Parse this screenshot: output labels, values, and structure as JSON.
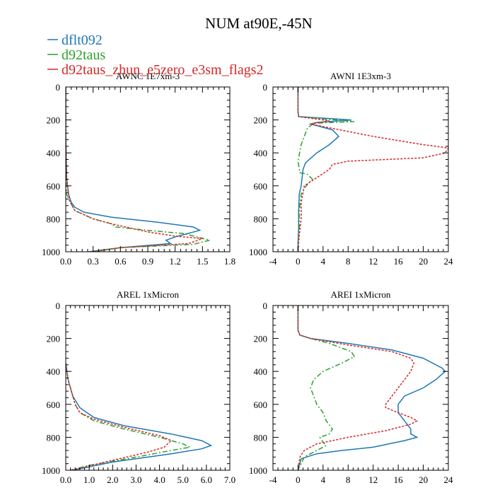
{
  "title": "NUM at90E,-45N",
  "legend": [
    {
      "label": "dflt092",
      "color": "#1f77b4",
      "dash": "solid"
    },
    {
      "label": "d92taus",
      "color": "#2ca02c",
      "dash": "dashdot"
    },
    {
      "label": "d92taus_zhun_e5zero_e3sm_flags2",
      "color": "#d62728",
      "dash": "dotted"
    }
  ],
  "chart_data": [
    {
      "type": "line",
      "title": "AWNC  1E7xm-3",
      "xlim": [
        0,
        1.8
      ],
      "ylim": [
        0,
        1000
      ],
      "xticks": [
        "0.0",
        "0.3",
        "0.6",
        "0.9",
        "1.2",
        "1.5",
        "1.8"
      ],
      "yticks": [
        "0",
        "200",
        "400",
        "600",
        "800",
        "1000"
      ],
      "xtick_values": [
        0,
        0.3,
        0.6,
        0.9,
        1.2,
        1.5,
        1.8
      ],
      "ytick_values": [
        0,
        200,
        400,
        600,
        800,
        1000
      ],
      "series": [
        {
          "name": "dflt092",
          "points": [
            [
              0,
              0
            ],
            [
              0,
              300
            ],
            [
              0.01,
              550
            ],
            [
              0.03,
              650
            ],
            [
              0.06,
              700
            ],
            [
              0.1,
              730
            ],
            [
              0.2,
              760
            ],
            [
              0.5,
              790
            ],
            [
              1.0,
              820
            ],
            [
              1.4,
              850
            ],
            [
              1.47,
              870
            ],
            [
              1.2,
              910
            ],
            [
              1.1,
              930
            ],
            [
              1.15,
              950
            ],
            [
              0.6,
              975
            ],
            [
              0.25,
              1000
            ]
          ]
        },
        {
          "name": "d92taus",
          "points": [
            [
              0,
              0
            ],
            [
              0,
              300
            ],
            [
              0,
              550
            ],
            [
              0.01,
              650
            ],
            [
              0.05,
              700
            ],
            [
              0.1,
              750
            ],
            [
              0.3,
              800
            ],
            [
              0.5,
              830
            ],
            [
              0.55,
              850
            ],
            [
              0.9,
              870
            ],
            [
              1.3,
              890
            ],
            [
              1.58,
              930
            ],
            [
              1.4,
              955
            ],
            [
              0.6,
              975
            ],
            [
              0.3,
              1000
            ]
          ]
        },
        {
          "name": "d92taus_zhun_e5zero_e3sm_flags2",
          "points": [
            [
              0,
              0
            ],
            [
              0,
              300
            ],
            [
              0.01,
              550
            ],
            [
              0.03,
              650
            ],
            [
              0.05,
              700
            ],
            [
              0.1,
              750
            ],
            [
              0.3,
              800
            ],
            [
              0.5,
              830
            ],
            [
              0.9,
              880
            ],
            [
              1.2,
              905
            ],
            [
              1.5,
              920
            ],
            [
              1.35,
              950
            ],
            [
              0.6,
              975
            ],
            [
              0.3,
              1000
            ]
          ]
        }
      ]
    },
    {
      "type": "line",
      "title": "AWNI  1E3xm-3",
      "xlim": [
        -4,
        24
      ],
      "ylim": [
        0,
        1000
      ],
      "xticks": [
        "-4",
        "0",
        "4",
        "8",
        "12",
        "16",
        "20",
        "24"
      ],
      "yticks": [
        "0",
        "200",
        "400",
        "600",
        "800",
        "1000"
      ],
      "xtick_values": [
        -4,
        0,
        4,
        8,
        12,
        16,
        20,
        24
      ],
      "ytick_values": [
        0,
        200,
        400,
        600,
        800,
        1000
      ],
      "series": [
        {
          "name": "dflt092",
          "points": [
            [
              0,
              0
            ],
            [
              0,
              150
            ],
            [
              0.1,
              180
            ],
            [
              8.5,
              200
            ],
            [
              3,
              215
            ],
            [
              2,
              225
            ],
            [
              5.5,
              260
            ],
            [
              6.5,
              300
            ],
            [
              5,
              350
            ],
            [
              3,
              400
            ],
            [
              1.2,
              460
            ],
            [
              0.8,
              500
            ],
            [
              0.5,
              600
            ],
            [
              0.2,
              650
            ],
            [
              0.1,
              750
            ],
            [
              0.1,
              850
            ],
            [
              0,
              950
            ],
            [
              0,
              1000
            ]
          ]
        },
        {
          "name": "d92taus",
          "points": [
            [
              0,
              0
            ],
            [
              0,
              150
            ],
            [
              0.1,
              180
            ],
            [
              9,
              210
            ],
            [
              2.5,
              220
            ],
            [
              1.5,
              250
            ],
            [
              0.5,
              350
            ],
            [
              0,
              450
            ],
            [
              0.3,
              520
            ],
            [
              1.5,
              530
            ],
            [
              2.3,
              560
            ],
            [
              1.3,
              600
            ],
            [
              0.5,
              650
            ],
            [
              0.2,
              750
            ],
            [
              0.2,
              850
            ],
            [
              0,
              950
            ],
            [
              0,
              1000
            ]
          ]
        },
        {
          "name": "d92taus_zhun_e5zero_e3sm_flags2",
          "points": [
            [
              0,
              0
            ],
            [
              0,
              150
            ],
            [
              0.1,
              180
            ],
            [
              5,
              205
            ],
            [
              2,
              225
            ],
            [
              12,
              300
            ],
            [
              20,
              350
            ],
            [
              24,
              370
            ],
            [
              23.5,
              400
            ],
            [
              20,
              430
            ],
            [
              8,
              450
            ],
            [
              5.5,
              470
            ],
            [
              5,
              500
            ],
            [
              3,
              550
            ],
            [
              1,
              600
            ],
            [
              0.5,
              700
            ],
            [
              0.5,
              800
            ],
            [
              0.2,
              900
            ],
            [
              0,
              1000
            ]
          ]
        }
      ]
    },
    {
      "type": "line",
      "title": "AREL  1xMicron",
      "xlim": [
        0,
        7.0
      ],
      "ylim": [
        0,
        1000
      ],
      "xticks": [
        "0.0",
        "1.0",
        "2.0",
        "3.0",
        "4.0",
        "5.0",
        "6.0",
        "7.0"
      ],
      "yticks": [
        "0",
        "200",
        "400",
        "600",
        "800",
        "1000"
      ],
      "xtick_values": [
        0,
        1,
        2,
        3,
        4,
        5,
        6,
        7
      ],
      "ytick_values": [
        0,
        200,
        400,
        600,
        800,
        1000
      ],
      "series": [
        {
          "name": "dflt092",
          "points": [
            [
              0,
              350
            ],
            [
              0.1,
              450
            ],
            [
              0.3,
              550
            ],
            [
              0.6,
              620
            ],
            [
              1.2,
              680
            ],
            [
              2.5,
              730
            ],
            [
              4.5,
              780
            ],
            [
              5.8,
              820
            ],
            [
              6.2,
              850
            ],
            [
              5.8,
              870
            ],
            [
              4.5,
              900
            ],
            [
              2,
              950
            ],
            [
              0.3,
              1000
            ]
          ]
        },
        {
          "name": "d92taus",
          "points": [
            [
              0,
              350
            ],
            [
              0.1,
              450
            ],
            [
              0.4,
              600
            ],
            [
              0.6,
              650
            ],
            [
              1.2,
              700
            ],
            [
              2.5,
              750
            ],
            [
              4,
              800
            ],
            [
              5,
              840
            ],
            [
              5.3,
              860
            ],
            [
              4.5,
              880
            ],
            [
              3,
              920
            ],
            [
              1,
              970
            ],
            [
              0.2,
              1000
            ]
          ]
        },
        {
          "name": "d92taus_zhun_e5zero_e3sm_flags2",
          "points": [
            [
              0,
              350
            ],
            [
              0.1,
              450
            ],
            [
              0.4,
              600
            ],
            [
              0.6,
              650
            ],
            [
              1.2,
              690
            ],
            [
              2.5,
              740
            ],
            [
              4,
              790
            ],
            [
              4.5,
              820
            ],
            [
              4.2,
              860
            ],
            [
              3.5,
              890
            ],
            [
              2,
              940
            ],
            [
              0.5,
              990
            ],
            [
              0.2,
              1000
            ]
          ]
        }
      ]
    },
    {
      "type": "line",
      "title": "AREI  1xMicron",
      "xlim": [
        -4,
        24
      ],
      "ylim": [
        0,
        1000
      ],
      "xticks": [
        "-4",
        "0",
        "4",
        "8",
        "12",
        "16",
        "20",
        "24"
      ],
      "yticks": [
        "0",
        "200",
        "400",
        "600",
        "800",
        "1000"
      ],
      "xtick_values": [
        -4,
        0,
        4,
        8,
        12,
        16,
        20,
        24
      ],
      "ytick_values": [
        0,
        200,
        400,
        600,
        800,
        1000
      ],
      "series": [
        {
          "name": "dflt092",
          "points": [
            [
              0,
              0
            ],
            [
              0,
              150
            ],
            [
              0.3,
              180
            ],
            [
              2,
              200
            ],
            [
              8,
              230
            ],
            [
              15,
              270
            ],
            [
              20,
              320
            ],
            [
              23,
              380
            ],
            [
              23.5,
              400
            ],
            [
              22,
              450
            ],
            [
              20,
              500
            ],
            [
              17,
              550
            ],
            [
              16,
              600
            ],
            [
              16,
              650
            ],
            [
              17,
              700
            ],
            [
              18,
              750
            ],
            [
              18,
              780
            ],
            [
              19,
              800
            ],
            [
              17,
              820
            ],
            [
              12,
              860
            ],
            [
              7,
              880
            ],
            [
              3,
              900
            ],
            [
              0.5,
              930
            ],
            [
              0,
              1000
            ]
          ]
        },
        {
          "name": "d92taus",
          "points": [
            [
              0,
              0
            ],
            [
              0,
              150
            ],
            [
              0.3,
              180
            ],
            [
              2,
              200
            ],
            [
              5,
              230
            ],
            [
              8.5,
              280
            ],
            [
              9,
              310
            ],
            [
              7,
              350
            ],
            [
              4,
              400
            ],
            [
              2.5,
              450
            ],
            [
              2,
              500
            ],
            [
              2.5,
              550
            ],
            [
              3,
              600
            ],
            [
              4,
              650
            ],
            [
              4.5,
              700
            ],
            [
              5.5,
              750
            ],
            [
              5,
              780
            ],
            [
              3.5,
              800
            ],
            [
              4,
              830
            ],
            [
              4.5,
              850
            ],
            [
              3,
              880
            ],
            [
              1,
              920
            ],
            [
              0,
              1000
            ]
          ]
        },
        {
          "name": "d92taus_zhun_e5zero_e3sm_flags2",
          "points": [
            [
              0,
              0
            ],
            [
              0,
              150
            ],
            [
              0.3,
              180
            ],
            [
              2,
              200
            ],
            [
              8,
              240
            ],
            [
              15,
              280
            ],
            [
              18,
              320
            ],
            [
              18.5,
              350
            ],
            [
              18,
              400
            ],
            [
              17,
              450
            ],
            [
              15,
              550
            ],
            [
              14,
              600
            ],
            [
              14,
              620
            ],
            [
              16,
              650
            ],
            [
              18,
              680
            ],
            [
              19,
              700
            ],
            [
              18,
              720
            ],
            [
              14,
              760
            ],
            [
              8,
              800
            ],
            [
              3,
              840
            ],
            [
              1,
              880
            ],
            [
              0.3,
              920
            ],
            [
              0,
              1000
            ]
          ]
        }
      ]
    }
  ]
}
